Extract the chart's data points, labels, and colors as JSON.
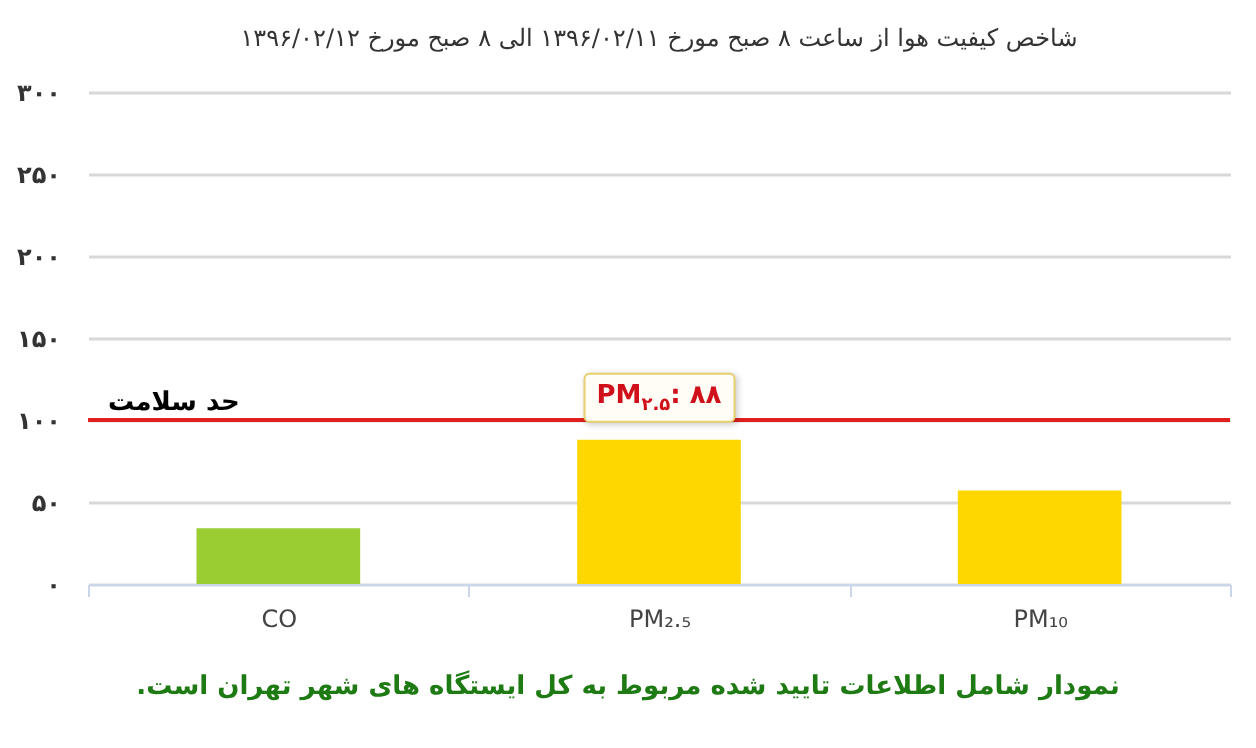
{
  "chart_data": {
    "type": "bar",
    "title": "شاخص کیفیت هوا از ساعت ۸ صبح مورخ ۱۳۹۶/۰۲/۱۱ الی ۸ صبح مورخ ۱۳۹۶/۰۲/۱۲",
    "categories": [
      "CO",
      "PM₂.₅",
      "PM₁₀"
    ],
    "values": [
      34,
      88,
      57
    ],
    "colors": [
      "#9acd32",
      "#ffd700",
      "#ffd700"
    ],
    "ylim": [
      0,
      300
    ],
    "yticks": [
      {
        "value": 0,
        "label": "۰"
      },
      {
        "value": 50,
        "label": "۵۰"
      },
      {
        "value": 100,
        "label": "۱۰۰"
      },
      {
        "value": 150,
        "label": "۱۵۰"
      },
      {
        "value": 200,
        "label": "۲۰۰"
      },
      {
        "value": 250,
        "label": "۲۵۰"
      },
      {
        "value": 300,
        "label": "۳۰۰"
      }
    ],
    "grid": "y",
    "ref_lines": [
      {
        "axis": "y",
        "value": 100,
        "label": "حد سلامت",
        "color": "#e0201e"
      }
    ],
    "annotations": [
      {
        "text": "PM$_{۲.۵}$: ۸۸",
        "x": "PM₂.₅",
        "y": 88
      },
      "نمودار شامل اطلاعات تایید شده مربوط به کل ایستگاه های شهر تهران است."
    ]
  }
}
